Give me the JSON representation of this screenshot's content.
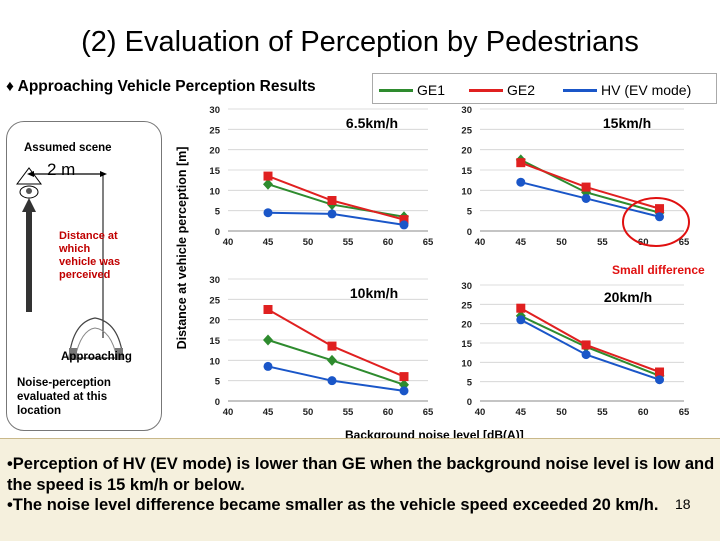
{
  "title": "(2) Evaluation of Perception by Pedestrians",
  "subtitle": "♦ Approaching Vehicle Perception Results",
  "legend": [
    {
      "name": "GE1",
      "color": "#2e8b2e"
    },
    {
      "name": "GE2",
      "color": "#e02020"
    },
    {
      "name": "HV (EV mode)",
      "color": "#1a56c8"
    }
  ],
  "scene": {
    "title": "Assumed scene",
    "distance": "2 m",
    "distance_note": "Distance at which vehicle was perceived",
    "approaching": "Approaching",
    "note": "Noise-perception evaluated at this location"
  },
  "y_axis_title": "Distance at vehicle perception [m]",
  "x_axis_title": "Background noise level [dB(A)]",
  "annotation": "Small difference",
  "bullets": [
    "•Perception of HV (EV mode) is lower than GE when the background noise level is low and the speed is 15 km/h or below.",
    "•The noise level difference became smaller as the vehicle speed exceeded 20 km/h."
  ],
  "page_number": "18",
  "chart_data": [
    {
      "type": "line",
      "title": "6.5km/h",
      "x": [
        45,
        53,
        62
      ],
      "xlim": [
        40,
        65
      ],
      "ylim": [
        0,
        30
      ],
      "xticks": [
        40,
        45,
        50,
        55,
        60,
        65
      ],
      "yticks": [
        0,
        5,
        10,
        15,
        20,
        25,
        30
      ],
      "grid": true,
      "series": [
        {
          "name": "GE1",
          "color": "#2e8b2e",
          "marker": "diamond",
          "values": [
            11.5,
            6.5,
            3.5
          ]
        },
        {
          "name": "GE2",
          "color": "#e02020",
          "marker": "square",
          "values": [
            13.5,
            7.5,
            2.8
          ]
        },
        {
          "name": "HV (EV mode)",
          "color": "#1a56c8",
          "marker": "circle",
          "values": [
            4.5,
            4.2,
            1.5
          ]
        }
      ]
    },
    {
      "type": "line",
      "title": "15km/h",
      "x": [
        45,
        53,
        62
      ],
      "xlim": [
        40,
        65
      ],
      "ylim": [
        0,
        30
      ],
      "xticks": [
        40,
        45,
        50,
        55,
        60,
        65
      ],
      "yticks": [
        0,
        5,
        10,
        15,
        20,
        25,
        30
      ],
      "grid": true,
      "series": [
        {
          "name": "GE1",
          "color": "#2e8b2e",
          "marker": "diamond",
          "values": [
            17.5,
            9.5,
            4.5
          ]
        },
        {
          "name": "GE2",
          "color": "#e02020",
          "marker": "square",
          "values": [
            16.8,
            10.8,
            5.5
          ]
        },
        {
          "name": "HV (EV mode)",
          "color": "#1a56c8",
          "marker": "circle",
          "values": [
            12,
            8,
            3.5
          ]
        }
      ]
    },
    {
      "type": "line",
      "title": "10km/h",
      "x": [
        45,
        53,
        62
      ],
      "xlim": [
        40,
        65
      ],
      "ylim": [
        0,
        30
      ],
      "xticks": [
        40,
        45,
        50,
        55,
        60,
        65
      ],
      "yticks": [
        0,
        5,
        10,
        15,
        20,
        25,
        30
      ],
      "grid": true,
      "series": [
        {
          "name": "GE1",
          "color": "#2e8b2e",
          "marker": "diamond",
          "values": [
            15,
            10,
            4
          ]
        },
        {
          "name": "GE2",
          "color": "#e02020",
          "marker": "square",
          "values": [
            22.5,
            13.5,
            6
          ]
        },
        {
          "name": "HV (EV mode)",
          "color": "#1a56c8",
          "marker": "circle",
          "values": [
            8.5,
            5,
            2.5
          ]
        }
      ]
    },
    {
      "type": "line",
      "title": "20km/h",
      "x": [
        45,
        53,
        62
      ],
      "xlim": [
        40,
        65
      ],
      "ylim": [
        0,
        30
      ],
      "xticks": [
        40,
        45,
        50,
        55,
        60,
        65
      ],
      "yticks": [
        0,
        5,
        10,
        15,
        20,
        25,
        30
      ],
      "grid": true,
      "series": [
        {
          "name": "GE1",
          "color": "#2e8b2e",
          "marker": "diamond",
          "values": [
            22,
            14,
            6.5
          ]
        },
        {
          "name": "GE2",
          "color": "#e02020",
          "marker": "square",
          "values": [
            24,
            14.5,
            7.5
          ]
        },
        {
          "name": "HV (EV mode)",
          "color": "#1a56c8",
          "marker": "circle",
          "values": [
            21,
            12,
            5.5
          ]
        }
      ]
    }
  ]
}
